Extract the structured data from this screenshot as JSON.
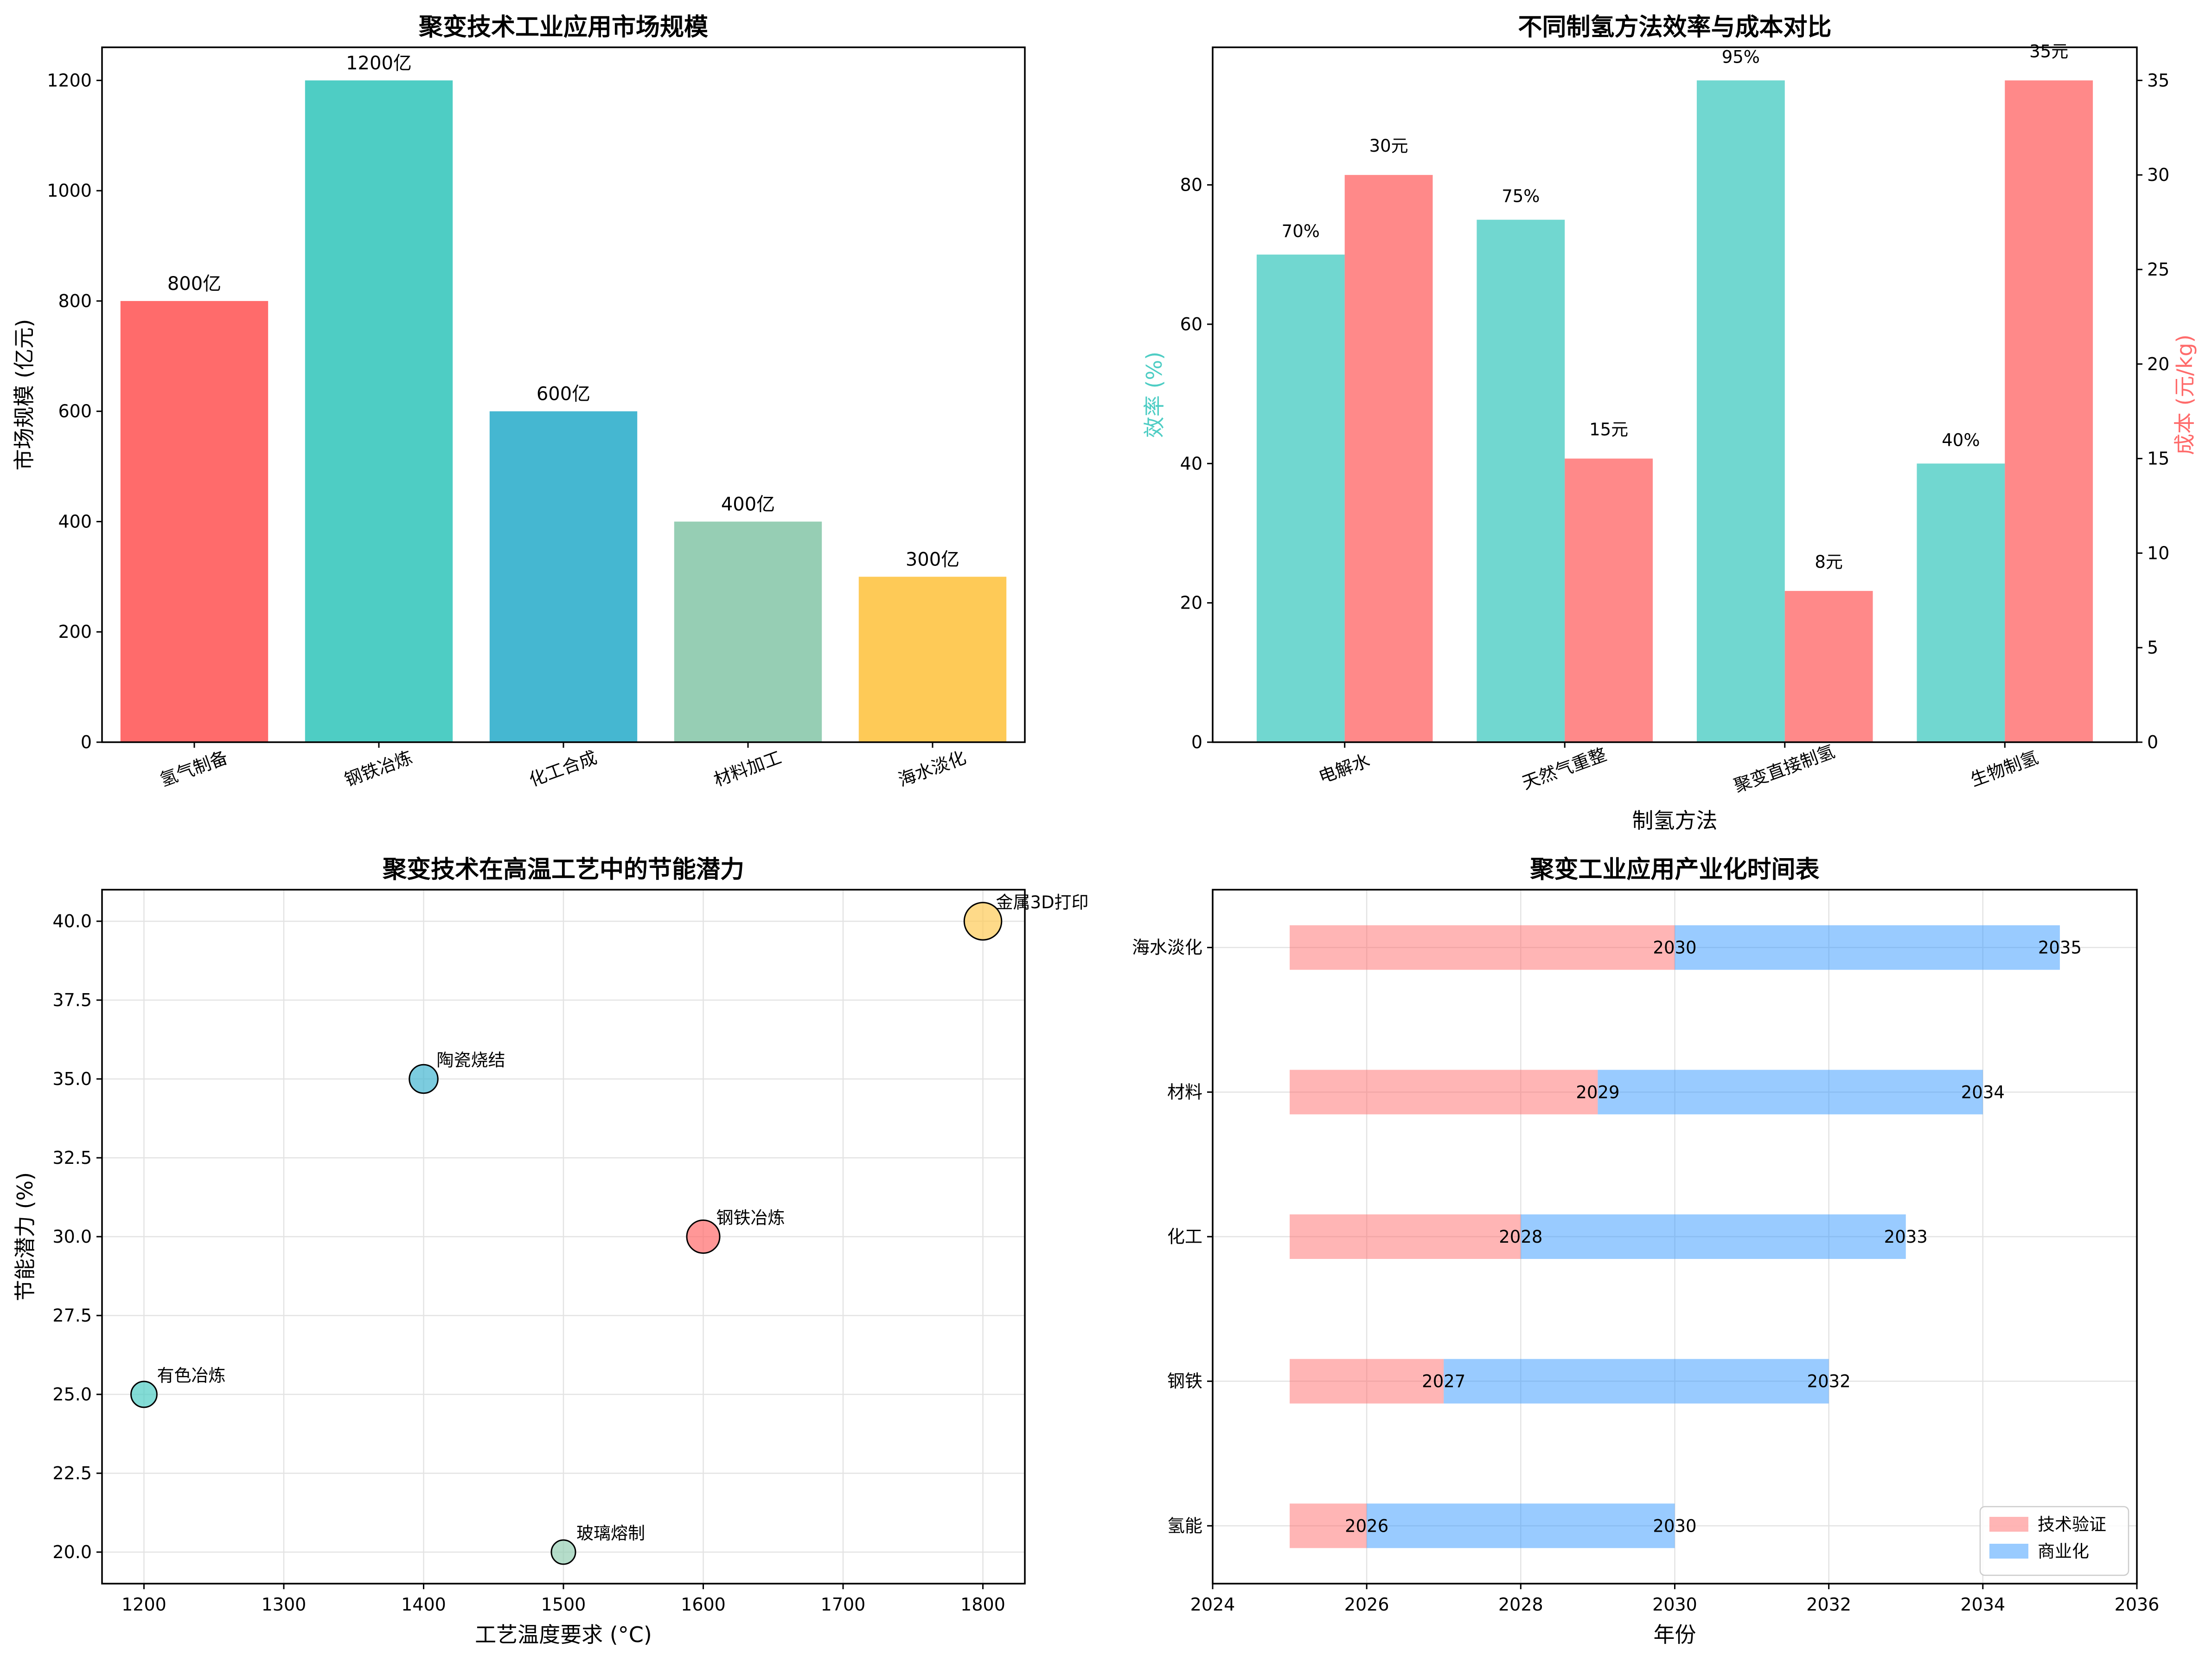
{
  "chart_data": [
    {
      "type": "bar",
      "title": "聚变技术工业应用市场规模",
      "xlabel": "",
      "ylabel": "市场规模 (亿元)",
      "ylim": [
        0,
        1260
      ],
      "yticks": [
        0,
        200,
        400,
        600,
        800,
        1000,
        1200
      ],
      "categories": [
        "氢气制备",
        "钢铁冶炼",
        "化工合成",
        "材料加工",
        "海水淡化"
      ],
      "values": [
        800,
        1200,
        600,
        400,
        300
      ],
      "data_labels": [
        "800亿",
        "1200亿",
        "600亿",
        "400亿",
        "300亿"
      ],
      "colors": [
        "#ff6b6b",
        "#4ecdc4",
        "#45b7d1",
        "#96ceb4",
        "#feca57"
      ]
    },
    {
      "type": "bar",
      "title": "不同制氢方法效率与成本对比",
      "xlabel": "制氢方法",
      "ylabel": "效率 (%)",
      "y2label": "成本 (元/kg)",
      "ylim": [
        0,
        99.75
      ],
      "yticks": [
        0,
        20,
        40,
        60,
        80
      ],
      "y2lim": [
        0,
        36.75
      ],
      "y2ticks": [
        0,
        5,
        10,
        15,
        20,
        25,
        30,
        35
      ],
      "categories": [
        "电解水",
        "天然气重整",
        "聚变直接制氢",
        "生物制氢"
      ],
      "series": [
        {
          "name": "效率",
          "axis": "left",
          "color": "#4ecdc4",
          "values": [
            70,
            75,
            95,
            40
          ],
          "labels": [
            "70%",
            "75%",
            "95%",
            "40%"
          ]
        },
        {
          "name": "成本",
          "axis": "right",
          "color": "#ff6b6b",
          "values": [
            30,
            15,
            8,
            35
          ],
          "labels": [
            "30元",
            "15元",
            "8元",
            "35元"
          ]
        }
      ]
    },
    {
      "type": "scatter",
      "title": "聚变技术在高温工艺中的节能潜力",
      "xlabel": "工艺温度要求 (°C)",
      "ylabel": "节能潜力 (%)",
      "xlim": [
        1170,
        1830
      ],
      "ylim": [
        19.0,
        41.0
      ],
      "xticks": [
        1200,
        1300,
        1400,
        1500,
        1600,
        1700,
        1800
      ],
      "yticks": [
        "20.0",
        "22.5",
        "25.0",
        "27.5",
        "30.0",
        "32.5",
        "35.0",
        "37.5",
        "40.0"
      ],
      "grid": true,
      "points": [
        {
          "label": "钢铁冶炼",
          "x": 1600,
          "y": 30,
          "size": 30,
          "color": "#ff6b6b"
        },
        {
          "label": "陶瓷烧结",
          "x": 1400,
          "y": 35,
          "size": 25,
          "color": "#45b7d1"
        },
        {
          "label": "玻璃熔制",
          "x": 1500,
          "y": 20,
          "size": 20,
          "color": "#96ceb4"
        },
        {
          "label": "金属3D打印",
          "x": 1800,
          "y": 40,
          "size": 35,
          "color": "#feca57"
        },
        {
          "label": "有色冶炼",
          "x": 1200,
          "y": 25,
          "size": 22,
          "color": "#4ecdc4"
        }
      ]
    },
    {
      "type": "gantt",
      "title": "聚变工业应用产业化时间表",
      "xlabel": "年份",
      "ylabel": "",
      "xlim": [
        2024,
        2036
      ],
      "xticks": [
        2024,
        2026,
        2028,
        2030,
        2032,
        2034,
        2036
      ],
      "grid": true,
      "legend": "bottom-right",
      "start_year": 2025,
      "phases": [
        {
          "name": "技术验证",
          "color": "#ff6b6b"
        },
        {
          "name": "商业化",
          "color": "#3498ff"
        }
      ],
      "rows": [
        {
          "label": "氢能",
          "verify_end": 2026,
          "commercial_end": 2030
        },
        {
          "label": "钢铁",
          "verify_end": 2027,
          "commercial_end": 2032
        },
        {
          "label": "化工",
          "verify_end": 2028,
          "commercial_end": 2033
        },
        {
          "label": "材料",
          "verify_end": 2029,
          "commercial_end": 2034
        },
        {
          "label": "海水淡化",
          "verify_end": 2030,
          "commercial_end": 2035
        }
      ]
    }
  ]
}
